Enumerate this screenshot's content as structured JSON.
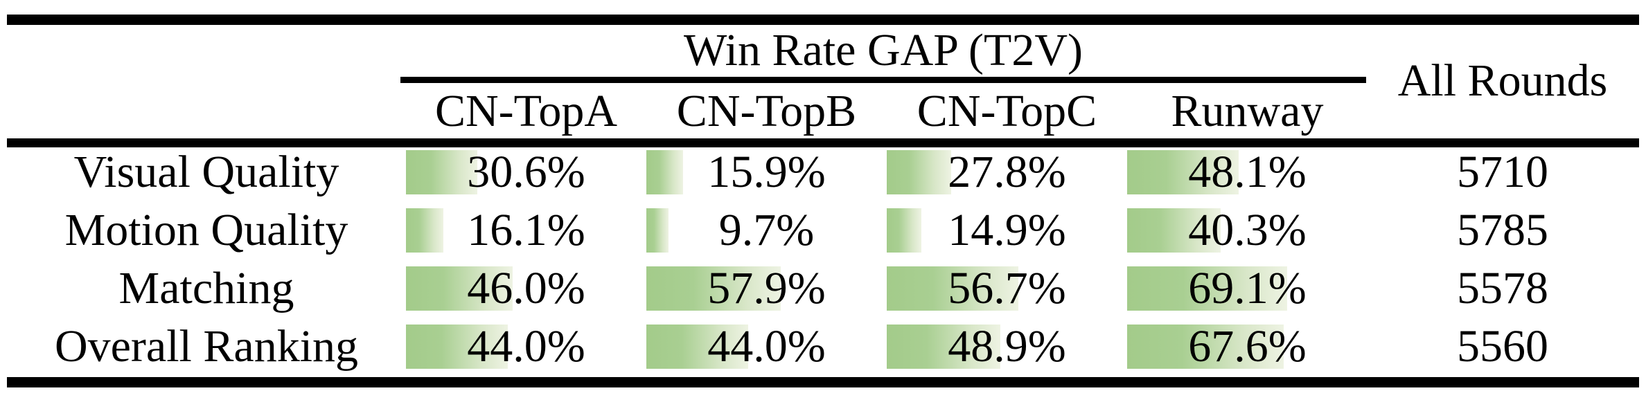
{
  "table": {
    "header": {
      "title": "Win Rate GAP (T2V)",
      "all_rounds": "All Rounds",
      "columns": [
        "CN-TopA",
        "CN-TopB",
        "CN-TopC",
        "Runway"
      ]
    },
    "rows": [
      {
        "label": "Visual Quality",
        "cells": [
          "30.6%",
          "15.9%",
          "27.8%",
          "48.1%"
        ],
        "rounds": "5710"
      },
      {
        "label": "Motion Quality",
        "cells": [
          "16.1%",
          "9.7%",
          "14.9%",
          "40.3%"
        ],
        "rounds": "5785"
      },
      {
        "label": "Matching",
        "cells": [
          "46.0%",
          "57.9%",
          "56.7%",
          "69.1%"
        ],
        "rounds": "5578"
      },
      {
        "label": "Overall Ranking",
        "cells": [
          "44.0%",
          "44.0%",
          "48.9%",
          "67.6%"
        ],
        "rounds": "5560"
      }
    ],
    "bar_color_start": "#a3cb8a",
    "bar_color_end": "#eef3e3"
  },
  "chart_data": {
    "type": "table",
    "title": "Win Rate GAP (T2V)",
    "columns": [
      "CN-TopA",
      "CN-TopB",
      "CN-TopC",
      "Runway",
      "All Rounds"
    ],
    "row_labels": [
      "Visual Quality",
      "Motion Quality",
      "Matching",
      "Overall Ranking"
    ],
    "win_rate_gap_percent": [
      [
        30.6,
        15.9,
        27.8,
        48.1
      ],
      [
        16.1,
        9.7,
        14.9,
        40.3
      ],
      [
        46.0,
        57.9,
        56.7,
        69.1
      ],
      [
        44.0,
        44.0,
        48.9,
        67.6
      ]
    ],
    "all_rounds": [
      5710,
      5785,
      5578,
      5560
    ],
    "layout_hint": "in-cell left-anchored green gradient data bars, length proportional to percent"
  }
}
